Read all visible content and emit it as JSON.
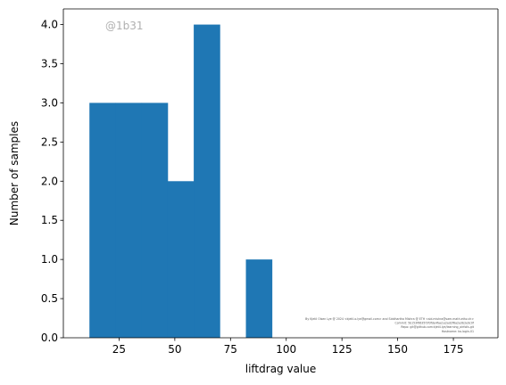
{
  "chart_data": {
    "type": "histogram",
    "title": "",
    "xlabel": "liftdrag value",
    "ylabel": "Number of samples",
    "xlim": [
      0,
      195
    ],
    "ylim": [
      0,
      4.2
    ],
    "xticks": [
      25,
      50,
      75,
      100,
      125,
      150,
      175
    ],
    "yticks": [
      0.0,
      0.5,
      1.0,
      1.5,
      2.0,
      2.5,
      3.0,
      3.5,
      4.0
    ],
    "bar_color": "#1f77b4",
    "grid": false,
    "bins": [
      {
        "x0": 11.7,
        "x1": 23.4,
        "count": 3
      },
      {
        "x0": 23.4,
        "x1": 35.1,
        "count": 3
      },
      {
        "x0": 35.1,
        "x1": 46.8,
        "count": 3
      },
      {
        "x0": 46.8,
        "x1": 58.5,
        "count": 2
      },
      {
        "x0": 58.5,
        "x1": 70.2,
        "count": 4
      },
      {
        "x0": 70.2,
        "x1": 81.9,
        "count": 0
      },
      {
        "x0": 81.9,
        "x1": 93.6,
        "count": 1
      }
    ],
    "annotations": {
      "watermark": "@1b31",
      "fineprint": [
        "By Kjetil Olsen Lye @ 2024 <kjetil.o.lye@gmail.com> and Siddhartha Mishra @ ETH <sid.mishra@sam.math.ethz.ch>",
        "Commit: 5b153f6635f3f3fde4fae1e2ad2f6a2a3b2e9c0f",
        "Repo: git@github.com:kjetil-lye/learning_airfoils.git",
        "Hostname: ka-login-01"
      ]
    }
  }
}
